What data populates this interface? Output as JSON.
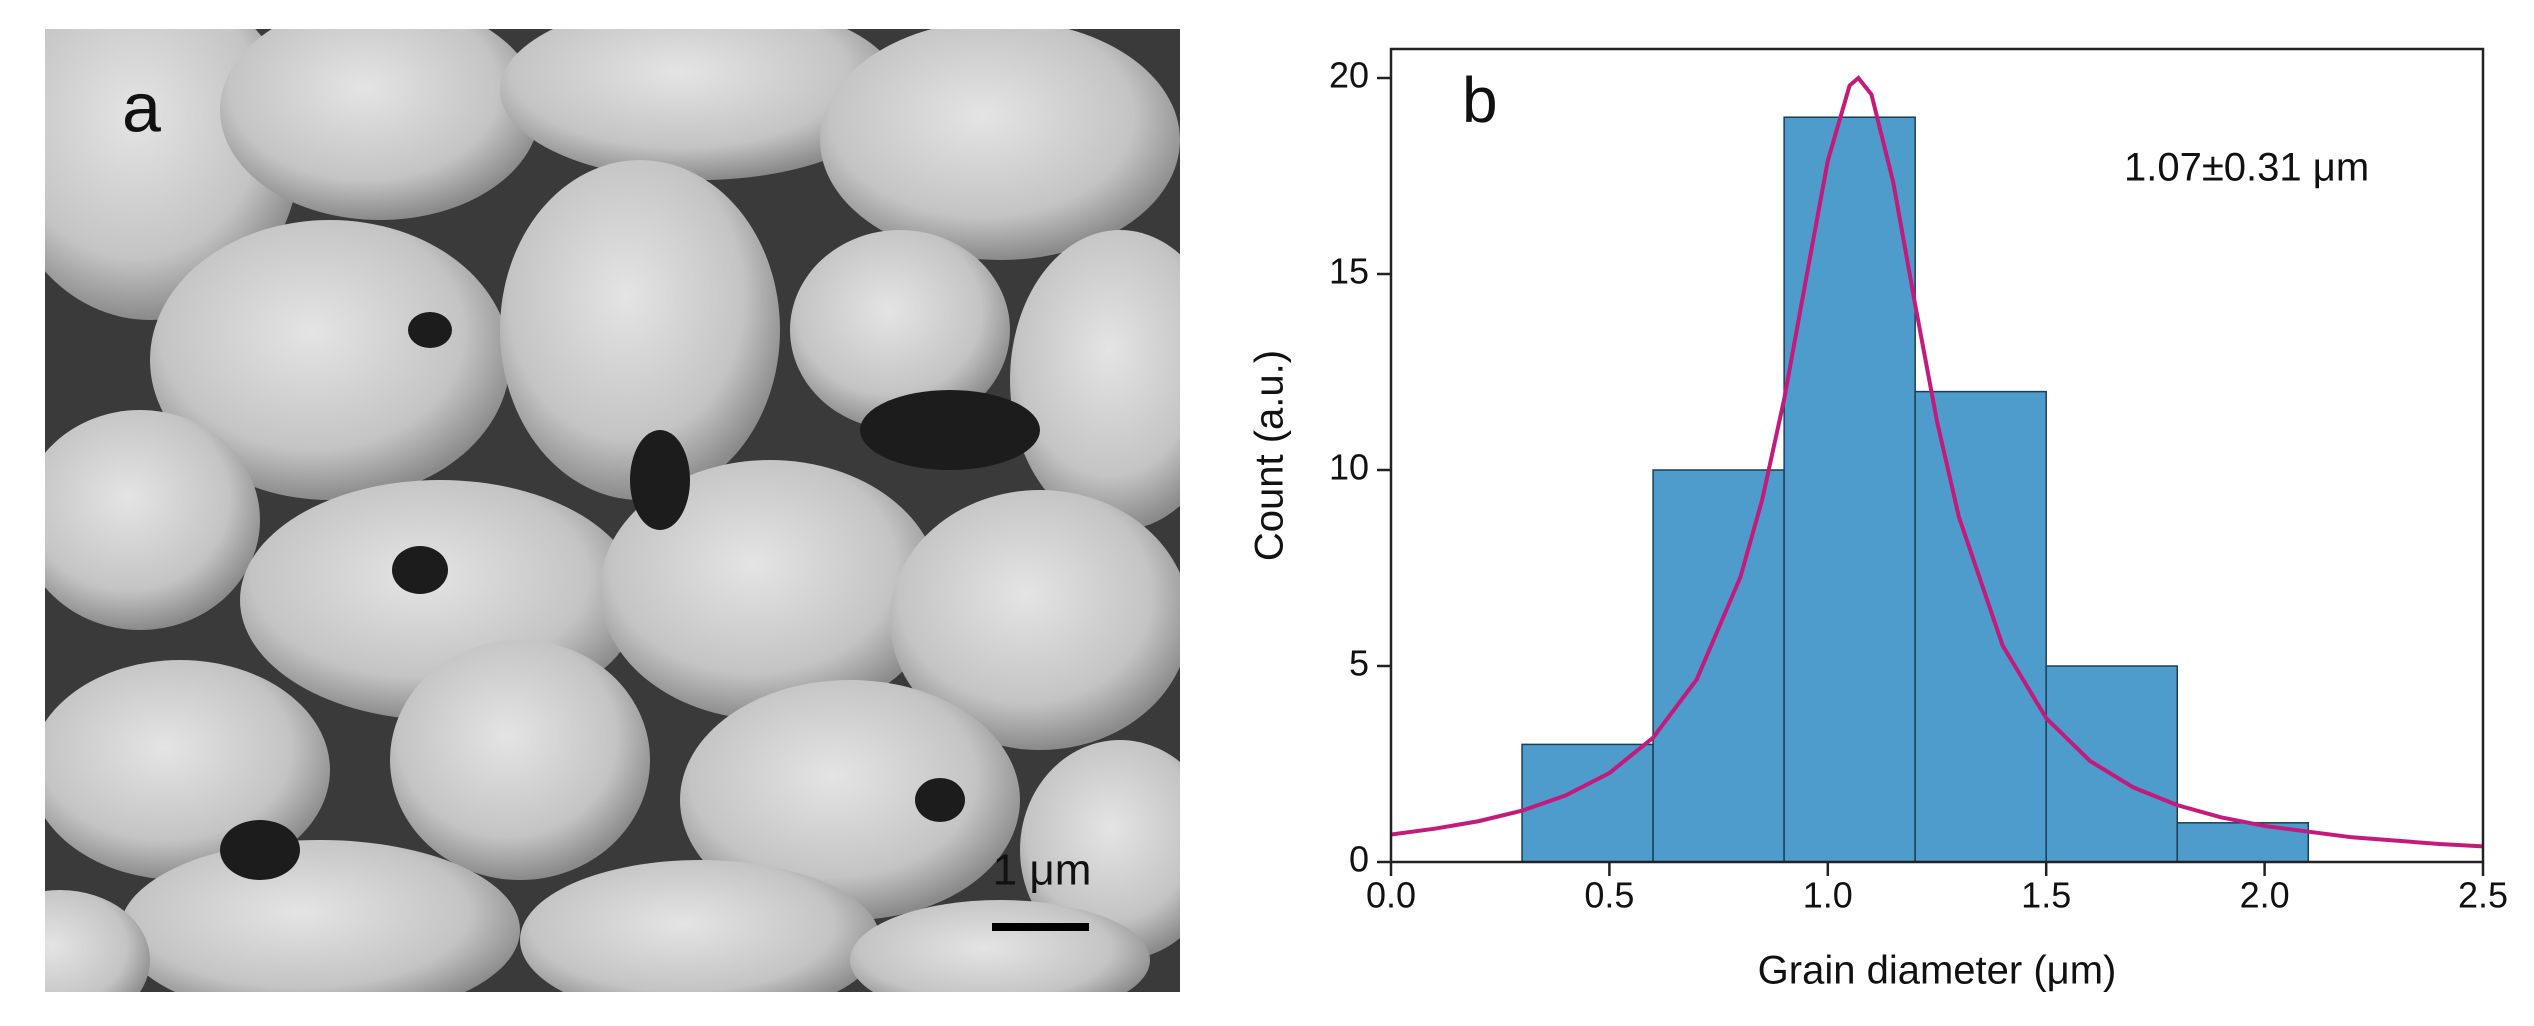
{
  "panel_a": {
    "label": "a",
    "scale_bar": "1 μm"
  },
  "chart_data": {
    "type": "histogram",
    "panel_label": "b",
    "annotation": "1.07±0.31 μm",
    "x_label": "Grain diameter (μm)",
    "y_label": "Count (a.u.)",
    "bins": [
      0.3,
      0.6,
      0.9,
      1.2,
      1.5,
      1.8,
      2.1
    ],
    "values": [
      3,
      10,
      19,
      12,
      5,
      1
    ],
    "color": "#4d9ccc",
    "edge_color": "#1d3d55",
    "fit": {
      "color": "#c41a7c",
      "x": [
        0,
        0.1,
        0.2,
        0.3,
        0.4,
        0.5,
        0.6,
        0.7,
        0.8,
        0.85,
        0.9,
        0.95,
        1.0,
        1.05,
        1.07,
        1.1,
        1.15,
        1.2,
        1.25,
        1.3,
        1.4,
        1.5,
        1.6,
        1.7,
        1.8,
        1.9,
        2.0,
        2.2,
        2.4,
        2.5
      ],
      "values": [
        0.7,
        0.85,
        1.04,
        1.31,
        1.7,
        2.27,
        3.17,
        4.66,
        7.27,
        9.25,
        11.8,
        14.86,
        17.89,
        19.81,
        20,
        19.58,
        17.33,
        14.22,
        11.24,
        8.81,
        5.53,
        3.67,
        2.58,
        1.9,
        1.45,
        1.14,
        0.92,
        0.63,
        0.46,
        0.4
      ]
    },
    "xlim": [
      0,
      2.5
    ],
    "ylim": [
      0,
      20.74
    ],
    "xticks": [
      {
        "value": 0,
        "label": "0.0"
      },
      0.5,
      {
        "value": 1,
        "label": "1.0"
      },
      1.5,
      {
        "value": 2,
        "label": "2.0"
      },
      2.5
    ],
    "yticks": [
      0,
      5,
      10,
      15,
      20
    ]
  }
}
